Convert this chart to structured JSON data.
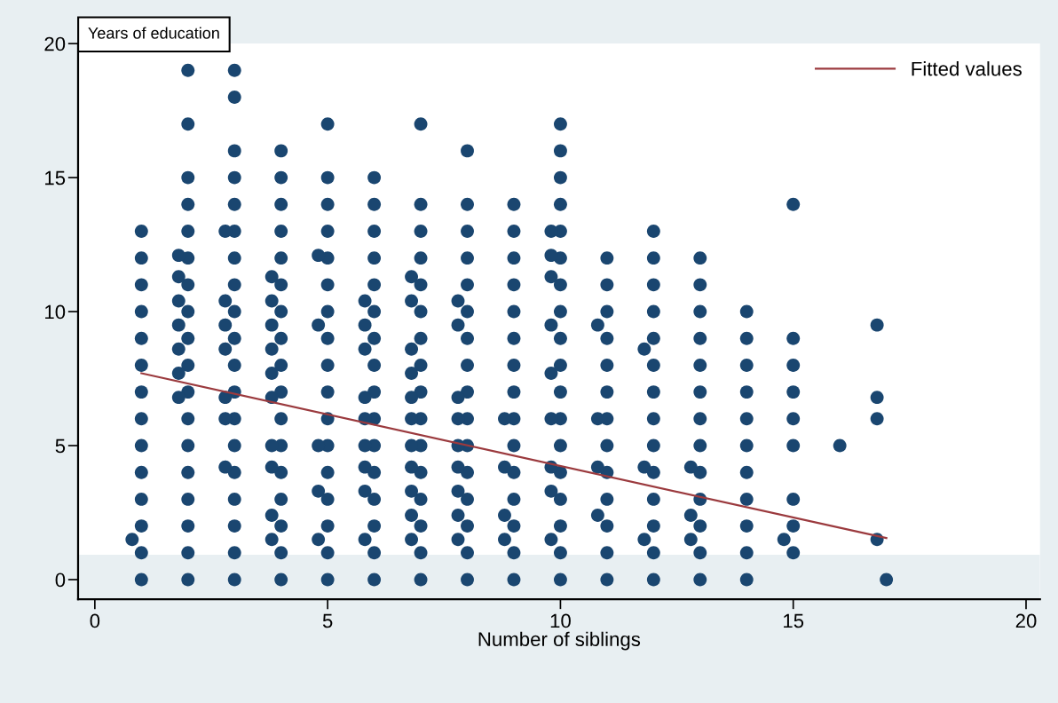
{
  "chart_data": {
    "type": "scatter",
    "xlabel": "Number of siblings",
    "ylabel": "Years of education",
    "xlim": [
      -0.36,
      20.3
    ],
    "ylim": [
      -0.73,
      20
    ],
    "xticks": [
      0,
      5,
      10,
      15,
      20
    ],
    "yticks": [
      0,
      5,
      10,
      15,
      20
    ],
    "grid": false,
    "legend": "top right",
    "bands": [
      {
        "axis": "y",
        "from": -0.73,
        "to": 0.93,
        "color": "#e8eff2"
      }
    ],
    "series": [
      {
        "marker": "circle",
        "color": "#1a4670",
        "x": [
          1,
          1,
          1,
          1,
          1,
          1,
          1,
          1,
          1,
          1,
          1,
          1,
          1,
          1,
          2,
          2,
          2,
          2,
          2,
          2,
          2,
          2,
          2,
          2,
          2,
          2,
          2,
          2,
          2,
          2,
          2,
          2,
          3,
          3,
          3,
          3,
          3,
          3,
          3,
          3,
          3,
          3,
          3,
          3,
          3,
          3,
          3,
          3,
          3,
          3,
          3,
          4,
          4,
          4,
          4,
          4,
          4,
          4,
          4,
          4,
          4,
          4,
          4,
          4,
          4,
          4,
          4,
          4,
          5,
          5,
          5,
          5,
          5,
          5,
          5,
          5,
          5,
          5,
          5,
          5,
          5,
          5,
          5,
          5,
          5,
          6,
          6,
          6,
          6,
          6,
          6,
          6,
          6,
          6,
          6,
          6,
          6,
          6,
          6,
          6,
          6,
          7,
          7,
          7,
          7,
          7,
          7,
          7,
          7,
          7,
          7,
          7,
          7,
          7,
          7,
          7,
          7,
          8,
          8,
          8,
          8,
          8,
          8,
          8,
          8,
          8,
          8,
          8,
          8,
          8,
          8,
          8,
          8,
          9,
          9,
          9,
          9,
          9,
          9,
          9,
          9,
          9,
          9,
          9,
          9,
          9,
          9,
          9,
          10,
          10,
          10,
          10,
          10,
          10,
          10,
          10,
          10,
          10,
          10,
          10,
          10,
          10,
          10,
          10,
          10,
          10,
          11,
          11,
          11,
          11,
          11,
          11,
          11,
          11,
          11,
          11,
          11,
          11,
          11,
          12,
          12,
          12,
          12,
          12,
          12,
          12,
          12,
          12,
          12,
          12,
          12,
          12,
          12,
          13,
          13,
          13,
          13,
          13,
          13,
          13,
          13,
          13,
          13,
          13,
          13,
          13,
          14,
          14,
          14,
          14,
          14,
          14,
          14,
          14,
          14,
          14,
          14,
          15,
          15,
          15,
          15,
          15,
          15,
          15,
          15,
          15,
          16,
          17,
          0.8,
          1.8,
          1.8,
          1.8,
          1.8,
          1.8,
          1.8,
          1.8,
          2.8,
          2.8,
          2.8,
          2.8,
          2.8,
          2.8,
          2.8,
          3.8,
          3.8,
          3.8,
          3.8,
          3.8,
          3.8,
          3.8,
          3.8,
          3.8,
          3.8,
          4.8,
          4.8,
          4.8,
          4.8,
          4.8,
          5.8,
          5.8,
          5.8,
          5.8,
          5.8,
          5.8,
          5.8,
          5.8,
          5.8,
          6.8,
          6.8,
          6.8,
          6.8,
          6.8,
          6.8,
          6.8,
          6.8,
          6.8,
          6.8,
          6.8,
          7.8,
          7.8,
          7.8,
          7.8,
          7.8,
          7.8,
          7.8,
          7.8,
          7.8,
          8.8,
          8.8,
          8.8,
          8.8,
          9.8,
          9.8,
          9.8,
          9.8,
          9.8,
          9.8,
          9.8,
          9.8,
          9.8,
          10.8,
          10.8,
          10.8,
          10.8,
          11.8,
          11.8,
          11.8,
          12.8,
          12.8,
          12.8,
          14.8,
          16.8,
          16.8,
          16.8,
          16.8
        ],
        "values": [
          0,
          1,
          2,
          3,
          4,
          5,
          6,
          7,
          8,
          9,
          10,
          11,
          12,
          13,
          0,
          1,
          2,
          3,
          4,
          5,
          6,
          7,
          8,
          9,
          10,
          11,
          12,
          13,
          14,
          15,
          17,
          19,
          0,
          1,
          2,
          3,
          4,
          5,
          6,
          7,
          8,
          9,
          10,
          11,
          12,
          13,
          14,
          15,
          16,
          18,
          19,
          0,
          1,
          2,
          3,
          4,
          5,
          6,
          7,
          8,
          9,
          10,
          11,
          12,
          13,
          14,
          15,
          16,
          0,
          1,
          2,
          3,
          4,
          5,
          6,
          7,
          8,
          9,
          10,
          11,
          12,
          13,
          14,
          15,
          17,
          0,
          1,
          2,
          3,
          4,
          5,
          6,
          7,
          8,
          9,
          10,
          11,
          12,
          13,
          14,
          15,
          0,
          1,
          2,
          3,
          4,
          5,
          6,
          7,
          8,
          9,
          10,
          11,
          12,
          13,
          14,
          17,
          0,
          1,
          2,
          3,
          4,
          5,
          6,
          7,
          8,
          9,
          10,
          11,
          12,
          13,
          14,
          16,
          0,
          1,
          2,
          3,
          4,
          5,
          6,
          7,
          8,
          9,
          10,
          11,
          12,
          13,
          14,
          0,
          1,
          2,
          3,
          4,
          5,
          6,
          7,
          8,
          9,
          10,
          11,
          12,
          13,
          14,
          15,
          16,
          17,
          0,
          1,
          2,
          3,
          4,
          5,
          6,
          7,
          8,
          9,
          10,
          11,
          12,
          0,
          1,
          2,
          3,
          4,
          5,
          6,
          7,
          8,
          9,
          10,
          11,
          12,
          13,
          0,
          1,
          2,
          3,
          4,
          5,
          6,
          7,
          8,
          9,
          10,
          11,
          12,
          0,
          1,
          2,
          3,
          4,
          5,
          6,
          7,
          8,
          9,
          10,
          1,
          2,
          3,
          5,
          6,
          7,
          8,
          9,
          14,
          5,
          0,
          1.5,
          12.1,
          11.3,
          10.4,
          9.5,
          8.6,
          7.7,
          6.8,
          13.0,
          10.4,
          9.5,
          8.6,
          6.8,
          6.0,
          4.2,
          11.3,
          10.4,
          9.5,
          8.6,
          7.7,
          6.8,
          5.0,
          4.2,
          2.4,
          1.5,
          12.1,
          9.5,
          5.0,
          3.3,
          1.5,
          10.4,
          9.5,
          8.6,
          6.8,
          6.0,
          5.0,
          4.2,
          3.3,
          1.5,
          11.3,
          10.4,
          8.6,
          7.7,
          6.8,
          6.0,
          5.0,
          4.2,
          3.3,
          2.4,
          1.5,
          10.4,
          9.5,
          6.8,
          6.0,
          5.0,
          4.2,
          3.3,
          2.4,
          1.5,
          6.0,
          4.2,
          2.4,
          1.5,
          13.0,
          12.1,
          11.3,
          9.5,
          7.7,
          6.0,
          4.2,
          3.3,
          1.5,
          9.5,
          6.0,
          4.2,
          2.4,
          8.6,
          4.2,
          1.5,
          4.2,
          2.4,
          1.5,
          1.5,
          9.5,
          6.8,
          6.0,
          1.5
        ]
      },
      {
        "type": "line",
        "marker": "none",
        "name": "Fitted values",
        "color": "#9b3a3e",
        "x": [
          1,
          17
        ],
        "values": [
          7.7,
          1.55
        ]
      }
    ]
  }
}
